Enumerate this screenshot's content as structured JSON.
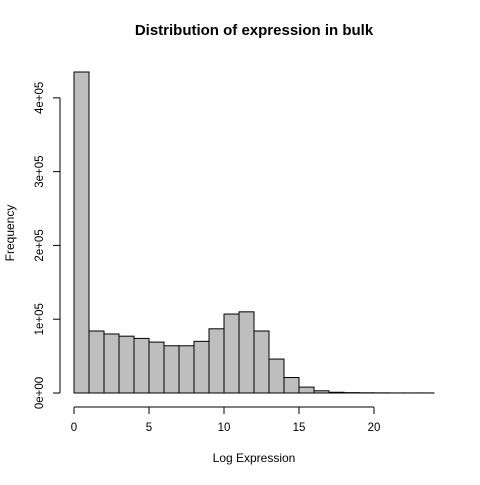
{
  "chart_data": {
    "type": "bar",
    "title": "Distribution of expression in bulk",
    "xlabel": "Log Expression",
    "ylabel": "Frequency",
    "bin_width": 1,
    "x_start": 0,
    "bins": [
      {
        "x0": 0,
        "x1": 1,
        "count": 435000
      },
      {
        "x0": 1,
        "x1": 2,
        "count": 84000
      },
      {
        "x0": 2,
        "x1": 3,
        "count": 80000
      },
      {
        "x0": 3,
        "x1": 4,
        "count": 77000
      },
      {
        "x0": 4,
        "x1": 5,
        "count": 74000
      },
      {
        "x0": 5,
        "x1": 6,
        "count": 69000
      },
      {
        "x0": 6,
        "x1": 7,
        "count": 64000
      },
      {
        "x0": 7,
        "x1": 8,
        "count": 64000
      },
      {
        "x0": 8,
        "x1": 9,
        "count": 70000
      },
      {
        "x0": 9,
        "x1": 10,
        "count": 87000
      },
      {
        "x0": 10,
        "x1": 11,
        "count": 107000
      },
      {
        "x0": 11,
        "x1": 12,
        "count": 110000
      },
      {
        "x0": 12,
        "x1": 13,
        "count": 84000
      },
      {
        "x0": 13,
        "x1": 14,
        "count": 46000
      },
      {
        "x0": 14,
        "x1": 15,
        "count": 21000
      },
      {
        "x0": 15,
        "x1": 16,
        "count": 8000
      },
      {
        "x0": 16,
        "x1": 17,
        "count": 3000
      },
      {
        "x0": 17,
        "x1": 18,
        "count": 1000
      },
      {
        "x0": 18,
        "x1": 19,
        "count": 500
      },
      {
        "x0": 19,
        "x1": 20,
        "count": 300
      },
      {
        "x0": 20,
        "x1": 21,
        "count": 200
      },
      {
        "x0": 21,
        "x1": 22,
        "count": 100
      },
      {
        "x0": 22,
        "x1": 23,
        "count": 100
      },
      {
        "x0": 23,
        "x1": 24,
        "count": 100
      }
    ],
    "xlim": [
      0,
      24
    ],
    "ylim": [
      0,
      435000
    ],
    "x_ticks": [
      0,
      5,
      10,
      15,
      20
    ],
    "x_tick_labels": [
      "0",
      "5",
      "10",
      "15",
      "20"
    ],
    "y_ticks": [
      0,
      100000,
      200000,
      300000,
      400000
    ],
    "y_tick_labels": [
      "0e+00",
      "1e+05",
      "2e+05",
      "3e+05",
      "4e+05"
    ],
    "grid": false,
    "bar_fill": "#bebebe",
    "bar_stroke": "#000000"
  }
}
